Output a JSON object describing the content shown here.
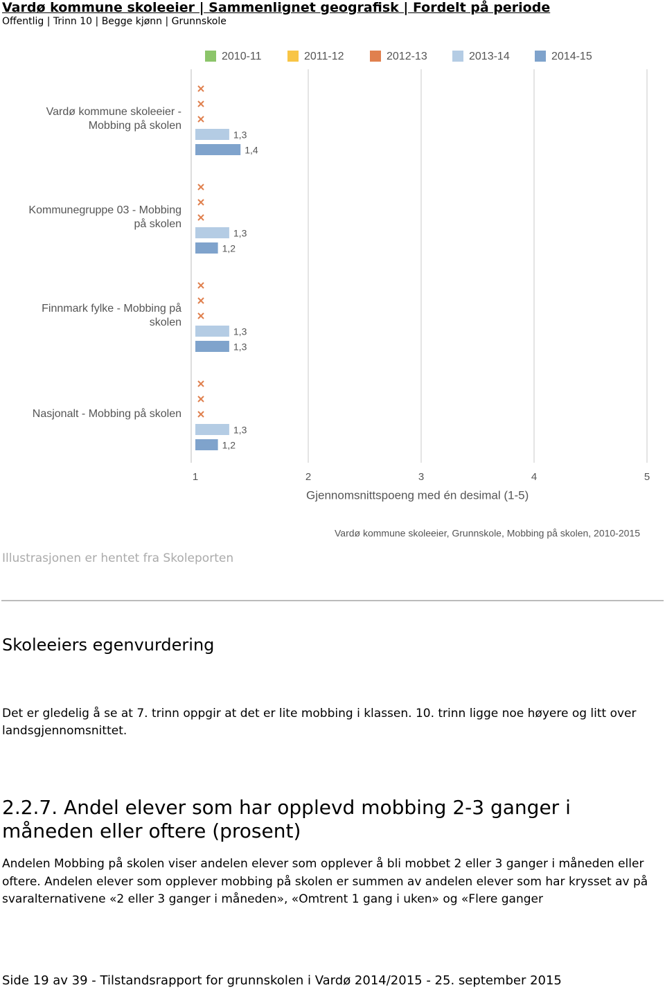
{
  "header": {
    "title": "Vardø kommune skoleeier | Sammenlignet geografisk | Fordelt på periode",
    "subtitle": "Offentlig | Trinn 10 | Begge kjønn | Grunnskole"
  },
  "chart_data": {
    "type": "bar",
    "orientation": "horizontal",
    "categories": [
      "Vardø kommune skoleeier - Mobbing på skolen",
      "Kommunegruppe 03 - Mobbing på skolen",
      "Finnmark fylke - Mobbing på skolen",
      "Nasjonalt - Mobbing på skolen"
    ],
    "series": [
      {
        "name": "2010-11",
        "color": "#8cc56a",
        "values": [
          null,
          null,
          null,
          null
        ]
      },
      {
        "name": "2011-12",
        "color": "#f8c545",
        "values": [
          null,
          null,
          null,
          null
        ]
      },
      {
        "name": "2012-13",
        "color": "#e0804e",
        "values": [
          null,
          null,
          null,
          null
        ]
      },
      {
        "name": "2013-14",
        "color": "#b4cce4",
        "values": [
          1.3,
          1.3,
          1.3,
          1.3
        ],
        "value_labels": [
          "1,3",
          "1,3",
          "1,3",
          "1,3"
        ]
      },
      {
        "name": "2014-15",
        "color": "#7fa3cc",
        "values": [
          1.4,
          1.2,
          1.3,
          1.2
        ],
        "value_labels": [
          "1,4",
          "1,2",
          "1,3",
          "1,2"
        ]
      }
    ],
    "xlim": [
      1,
      5
    ],
    "xticks": [
      1,
      2,
      3,
      4,
      5
    ],
    "grid": true,
    "legend": "top",
    "xlabel": "Gjennomsnittspoeng med én desimal (1-5)",
    "caption": "Vardø kommune skoleeier, Grunnskole, Mobbing på skolen, 2010-2015"
  },
  "source_note": "Illustrasjonen er hentet fra Skoleporten",
  "section_heading": "Skoleeiers egenvurdering",
  "section_text": "Det er gledelig å se at 7. trinn oppgir at det er lite mobbing i klassen. 10. trinn ligge noe høyere og litt over landsgjennomsnittet.",
  "subsection_heading": "2.2.7. Andel elever som har opplevd mobbing 2-3 ganger i måneden eller oftere (prosent)",
  "subsection_text": "Andelen Mobbing på skolen viser andelen elever som opplever å bli mobbet 2 eller 3 ganger i måneden eller oftere. Andelen elever som opplever mobbing på skolen er summen av andelen elever som har krysset av på svaralternativene «2 eller 3 ganger i måneden», «Omtrent 1 gang i uken» og «Flere ganger",
  "footer": "Side 19 av 39 - Tilstandsrapport for grunnskolen i Vardø 2014/2015 - 25. september 2015"
}
